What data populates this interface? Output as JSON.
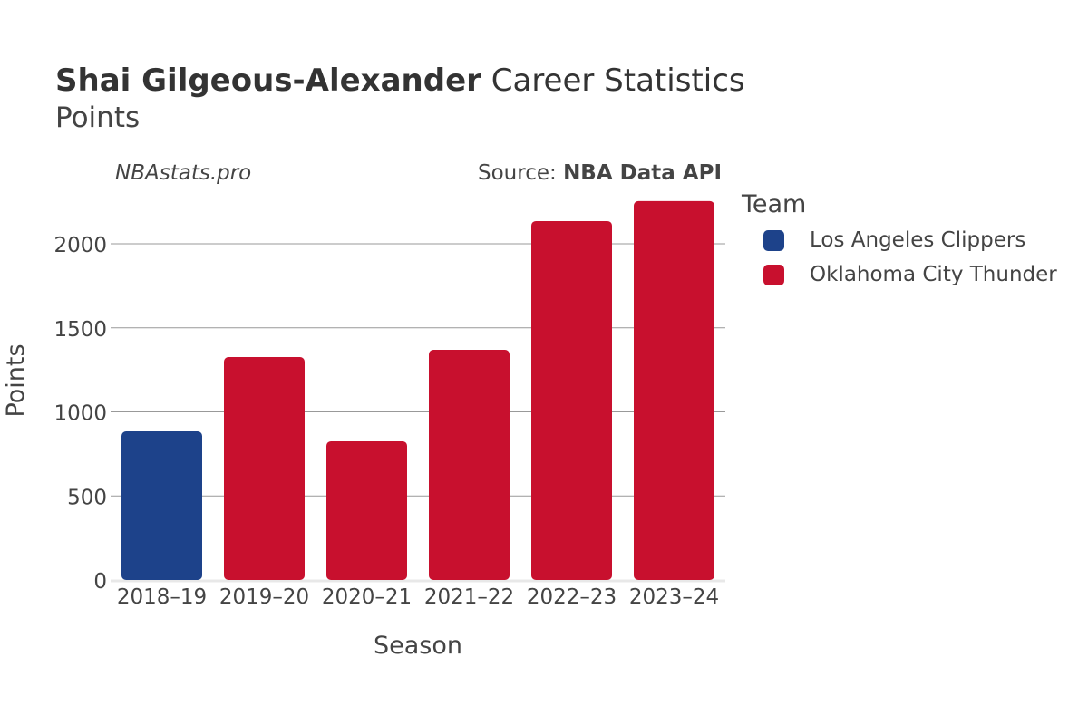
{
  "title": {
    "bold": "Shai Gilgeous-Alexander",
    "rest": " Career Statistics"
  },
  "subtitle": "Points",
  "credit": "NBAstats.pro",
  "source": {
    "label": "Source: ",
    "bold": "NBA Data API"
  },
  "legend": {
    "title": "Team",
    "items": [
      {
        "label": "Los Angeles Clippers",
        "color": "#1d428a"
      },
      {
        "label": "Oklahoma City Thunder",
        "color": "#c8102e"
      }
    ]
  },
  "chart_data": {
    "type": "bar",
    "title": "Shai Gilgeous-Alexander Career Statistics",
    "subtitle": "Points",
    "xlabel": "Season",
    "ylabel": "Points",
    "categories": [
      "2018–19",
      "2019–20",
      "2020–21",
      "2021–22",
      "2022–23",
      "2023–24"
    ],
    "values": [
      884,
      1326,
      825,
      1369,
      2135,
      2254
    ],
    "teams": [
      "Los Angeles Clippers",
      "Oklahoma City Thunder",
      "Oklahoma City Thunder",
      "Oklahoma City Thunder",
      "Oklahoma City Thunder",
      "Oklahoma City Thunder"
    ],
    "colors": [
      "#1d428a",
      "#c8102e",
      "#c8102e",
      "#c8102e",
      "#c8102e",
      "#c8102e"
    ],
    "yticks": [
      0,
      500,
      1000,
      1500,
      2000
    ],
    "ylim": [
      0,
      2380
    ],
    "grid": true,
    "legend_position": "right"
  }
}
